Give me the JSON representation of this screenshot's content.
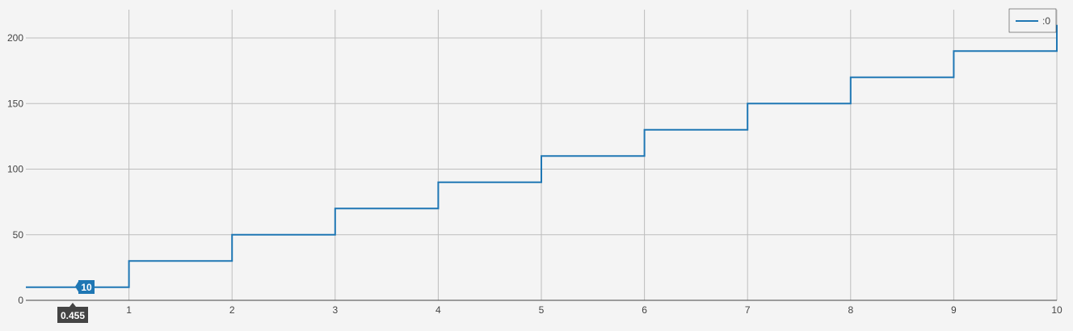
{
  "chart_data": {
    "type": "line",
    "line_shape": "step-hv",
    "x": [
      0,
      1,
      2,
      3,
      4,
      5,
      6,
      7,
      8,
      9,
      10
    ],
    "series": [
      {
        "name": ":0",
        "values": [
          10,
          30,
          50,
          70,
          90,
          110,
          130,
          150,
          170,
          190,
          210
        ],
        "color": "#1f77b4"
      }
    ],
    "xlim": [
      0,
      10
    ],
    "ylim": [
      0,
      200
    ],
    "x_ticks": [
      1,
      2,
      3,
      4,
      5,
      6,
      7,
      8,
      9,
      10
    ],
    "y_ticks": [
      0,
      50,
      100,
      150,
      200
    ],
    "grid": true,
    "legend_position": "top-right",
    "hover": {
      "x_value": "0.455",
      "y_value": "10"
    },
    "colors": {
      "background": "#f4f4f4",
      "grid": "#bdbdbd",
      "axis": "#444444",
      "tooltip_x": "#444444"
    }
  }
}
